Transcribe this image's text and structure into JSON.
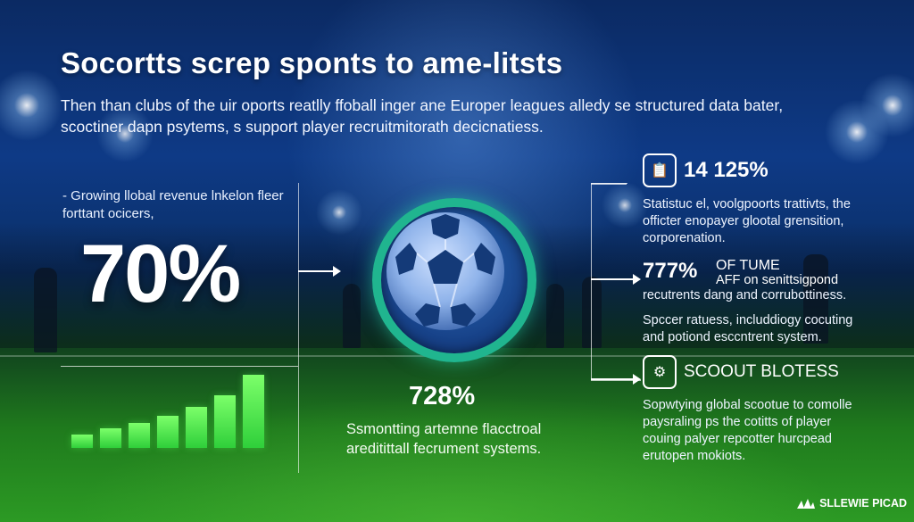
{
  "headline": "Socortts scrер sponts to ame-litsts",
  "intro": "Then than clubs of the uir oports reatlly ffoball inger ane Europer leagues alledy se structured data bater, scoctiner dapn psytems, s support player recruitmitorath decicnatiess.",
  "left": {
    "label": "- Growing llobal revenue lnkelon fleer forttant ocicers,",
    "stat": "70%",
    "bar_chart": {
      "type": "bar",
      "values": [
        1,
        1.4,
        1.8,
        2.3,
        3.0,
        3.8,
        5.3
      ]
    }
  },
  "center": {
    "stat": "728%",
    "desc": "Ssmontting artemne flacctroal areditittall fecrument systems."
  },
  "right": {
    "item1": {
      "icon": "clipboard-icon",
      "stat": "14 125%",
      "text": "Statistuc el, voolgpoorts trattivts, the officter enopayer glootal grensition, corporenation."
    },
    "item2": {
      "stat": "777%",
      "head": "OF TUME",
      "subhead": "AFF on senittsigpond",
      "text": "recutrents dang and corrubottiness.",
      "text2": "Spccer ratuess, includdiogy cocuting and potiond esccntrent system."
    },
    "item3": {
      "icon": "microscope-icon",
      "title": "SCOOUT BLOTESS",
      "text": "Sopwtying global scootue to comolle paysraling ps the cotitts of player couing palyer repcotter hurcpead erutopen mokiots."
    }
  },
  "brand": "SLLEWIE PICAD",
  "colors": {
    "ring": "#20b58f",
    "bars": "#4fe84a",
    "sky": "#0e3a86",
    "grass": "#2c9a24"
  }
}
